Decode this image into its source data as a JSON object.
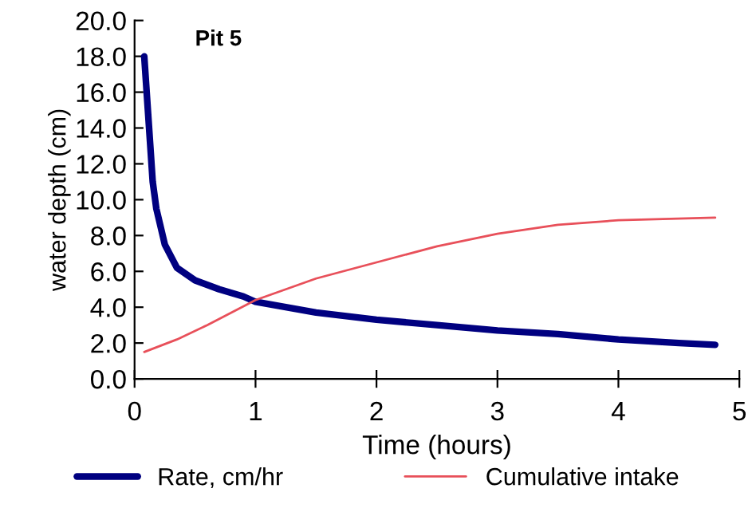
{
  "chart_data": {
    "type": "line",
    "xlabel": "Time (hours)",
    "ylabel": "water depth (cm)",
    "annotations": [
      "Pit 5"
    ],
    "xlim": [
      0,
      5
    ],
    "xticks": [
      0,
      1,
      2,
      3,
      4,
      5
    ],
    "ylim": [
      0,
      20
    ],
    "yticks": [
      {
        "value": 0,
        "label": "0.0"
      },
      {
        "value": 2,
        "label": "2.0"
      },
      {
        "value": 4,
        "label": "4.0"
      },
      {
        "value": 6,
        "label": "6.0"
      },
      {
        "value": 8,
        "label": "8.0"
      },
      {
        "value": 10,
        "label": "10.0"
      },
      {
        "value": 12,
        "label": "12.0"
      },
      {
        "value": 14,
        "label": "14.0"
      },
      {
        "value": 16,
        "label": "16.0"
      },
      {
        "value": 18,
        "label": "18.0"
      },
      {
        "value": 20,
        "label": "20.0"
      }
    ],
    "grid": false,
    "legend": "bottom",
    "marker": "none",
    "series": [
      {
        "name": "Rate, cm/hr",
        "color": "#000080",
        "x": [
          0.08,
          0.12,
          0.15,
          0.18,
          0.25,
          0.35,
          0.5,
          0.7,
          0.9,
          1.0,
          1.5,
          2,
          2.5,
          3,
          3.5,
          4,
          4.5,
          4.8
        ],
        "values": [
          18,
          14,
          11,
          9.5,
          7.5,
          6.2,
          5.5,
          5.0,
          4.6,
          4.3,
          3.7,
          3.3,
          3.0,
          2.7,
          2.5,
          2.2,
          2.0,
          1.9
        ]
      },
      {
        "name": "Cumulative intake",
        "color": "#e8505a",
        "x": [
          0.08,
          0.35,
          0.6,
          1.0,
          1.5,
          2,
          2.5,
          3,
          3.5,
          4,
          4.8
        ],
        "values": [
          1.5,
          2.2,
          3.0,
          4.4,
          5.6,
          6.5,
          7.4,
          8.1,
          8.6,
          8.85,
          9.0
        ]
      }
    ]
  }
}
